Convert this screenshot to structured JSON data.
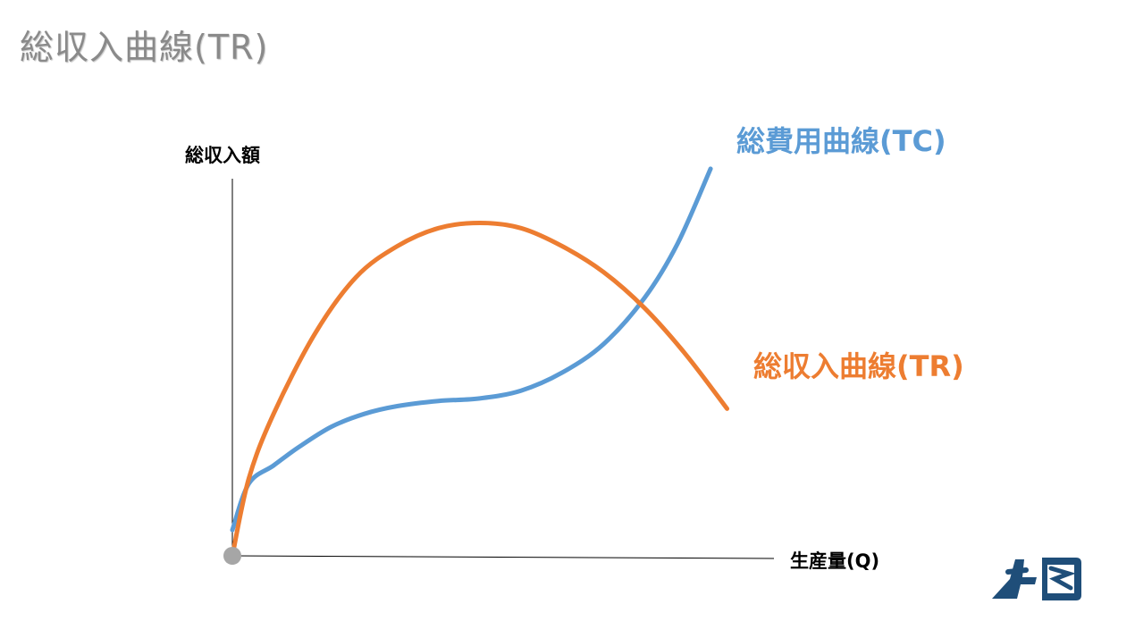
{
  "title": "総収入曲線(TR)",
  "chart_data": {
    "type": "line",
    "ylabel": "総収入額",
    "xlabel": "生産量(Q)",
    "colors": {
      "tc": "#5b9bd5",
      "tr": "#ed7d31",
      "origin": "#a6a6a6"
    },
    "series": [
      {
        "key": "tc",
        "name": "総費用曲線(TC)",
        "color": "#5b9bd5",
        "x": [
          0,
          2,
          5,
          8,
          12,
          16,
          20,
          25,
          30,
          35,
          40,
          45,
          50,
          54,
          58
        ],
        "y": [
          10,
          28,
          35,
          42,
          50,
          55,
          58,
          60,
          61,
          64,
          71,
          82,
          100,
          121,
          150
        ]
      },
      {
        "key": "tr",
        "name": "総収入曲線(TR)",
        "color": "#ed7d31",
        "x": [
          0,
          2,
          5,
          10,
          15,
          20,
          25,
          30,
          35,
          40,
          45,
          50,
          55,
          60
        ],
        "y": [
          0,
          30,
          55,
          86,
          108,
          120,
          127,
          129,
          127,
          120,
          110,
          96,
          78,
          57
        ]
      }
    ],
    "xlim": [
      0,
      62
    ],
    "ylim": [
      0,
      160
    ],
    "grid": false,
    "legend": "none"
  }
}
